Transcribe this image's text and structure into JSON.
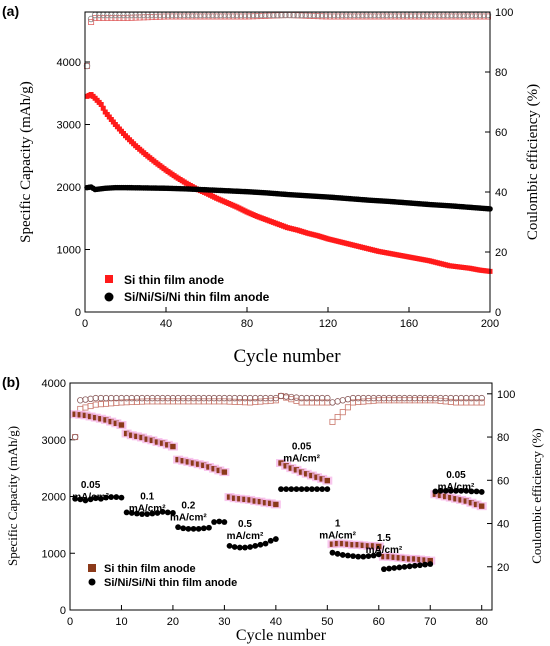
{
  "chart_data": [
    {
      "type": "scatter",
      "panel_label": "(a)",
      "xlabel": "Cycle number",
      "ylabel": "Specific Capacity (mAh/g)",
      "ylabel_right": "Coulombic efficiency (%)",
      "xlim": [
        0,
        200
      ],
      "ylim": [
        0,
        4800
      ],
      "ylim_right": [
        0,
        100
      ],
      "x_ticks": [
        "0",
        "40",
        "80",
        "120",
        "160",
        "200"
      ],
      "y_ticks": [
        "0",
        "1000",
        "2000",
        "3000",
        "4000"
      ],
      "y_ticks_right": [
        "0",
        "20",
        "40",
        "60",
        "80",
        "100"
      ],
      "legend_position": "bottom-left",
      "grid": false,
      "colors": {
        "si": "#ff1a1a",
        "multi": "#000000",
        "si_ce": "#e06666",
        "multi_ce": "#888888"
      },
      "series": [
        {
          "name": "Si thin film anode",
          "axis": "left",
          "x": [
            1,
            3,
            5,
            8,
            10,
            15,
            20,
            25,
            30,
            35,
            40,
            45,
            50,
            55,
            60,
            65,
            70,
            75,
            80,
            85,
            90,
            95,
            100,
            105,
            110,
            115,
            120,
            125,
            130,
            135,
            140,
            145,
            150,
            155,
            160,
            165,
            170,
            175,
            180,
            185,
            190,
            195,
            200
          ],
          "y": [
            3450,
            3480,
            3420,
            3320,
            3200,
            3000,
            2820,
            2660,
            2520,
            2390,
            2270,
            2160,
            2060,
            1970,
            1900,
            1820,
            1750,
            1680,
            1600,
            1530,
            1470,
            1410,
            1350,
            1310,
            1260,
            1220,
            1170,
            1130,
            1090,
            1050,
            1010,
            970,
            940,
            910,
            880,
            850,
            820,
            780,
            740,
            720,
            700,
            670,
            650
          ]
        },
        {
          "name": "Si/Ni/Si/Ni thin film anode",
          "axis": "left",
          "x": [
            1,
            3,
            5,
            10,
            15,
            20,
            30,
            40,
            50,
            60,
            70,
            80,
            90,
            100,
            110,
            120,
            130,
            140,
            150,
            160,
            170,
            180,
            190,
            200
          ],
          "y": [
            1990,
            2000,
            1960,
            1980,
            1990,
            1990,
            1985,
            1980,
            1970,
            1955,
            1940,
            1925,
            1905,
            1880,
            1860,
            1840,
            1815,
            1790,
            1770,
            1745,
            1720,
            1700,
            1675,
            1650
          ]
        },
        {
          "name": "Si thin film CE",
          "axis": "right",
          "marker": "open-square",
          "x": [
            1,
            2,
            5,
            10,
            20,
            40,
            60,
            80,
            100,
            120,
            140,
            160,
            180,
            200
          ],
          "y": [
            82,
            96,
            98,
            98,
            98,
            98.5,
            98.5,
            98.5,
            99,
            98.5,
            98.5,
            98.5,
            98.5,
            98.5
          ]
        },
        {
          "name": "Si/Ni/Si/Ni thin film CE",
          "axis": "right",
          "marker": "open-circle",
          "x": [
            1,
            2,
            5,
            10,
            20,
            40,
            60,
            80,
            100,
            120,
            140,
            160,
            180,
            200
          ],
          "y": [
            82,
            97,
            99,
            99,
            99,
            99,
            99,
            99,
            99,
            99,
            99,
            99,
            99,
            99
          ]
        }
      ]
    },
    {
      "type": "scatter",
      "panel_label": "(b)",
      "xlabel": "Cycle number",
      "ylabel": "Specific Capacity (mAh/g)",
      "ylabel_right": "Coulombic efficiency (%)",
      "xlim": [
        0,
        82
      ],
      "ylim": [
        0,
        4000
      ],
      "ylim_right": [
        0,
        105
      ],
      "x_ticks": [
        "0",
        "10",
        "20",
        "30",
        "40",
        "50",
        "60",
        "70",
        "80"
      ],
      "y_ticks": [
        "0",
        "1000",
        "2000",
        "3000",
        "4000"
      ],
      "y_ticks_right": [
        "20",
        "40",
        "60",
        "80",
        "100"
      ],
      "legend_position": "bottom-left",
      "grid": false,
      "colors": {
        "si": "#8b3a1a",
        "si_glow": "#f6b8e8",
        "multi": "#000000",
        "si_ce": "#c9776b",
        "multi_ce": "#8a5a5a"
      },
      "annotations": [
        {
          "lines": [
            "0.05",
            "mA/cm²"
          ],
          "x": 4,
          "y": 2150
        },
        {
          "lines": [
            "0.1",
            "mA/cm²"
          ],
          "x": 15,
          "y": 1950
        },
        {
          "lines": [
            "0.2",
            "mA/cm²"
          ],
          "x": 23,
          "y": 1790
        },
        {
          "lines": [
            "0.5",
            "mA/cm²"
          ],
          "x": 34,
          "y": 1460
        },
        {
          "lines": [
            "0.05",
            "mA/cm²"
          ],
          "x": 45,
          "y": 2830
        },
        {
          "lines": [
            "1",
            "mA/cm²"
          ],
          "x": 52,
          "y": 1470
        },
        {
          "lines": [
            "1.5",
            "mA/cm²"
          ],
          "x": 61,
          "y": 1220
        },
        {
          "lines": [
            "0.05",
            "mA/cm²"
          ],
          "x": 75,
          "y": 2330
        }
      ],
      "series": [
        {
          "name": "Si thin film anode",
          "axis": "left",
          "x": [
            1,
            2,
            3,
            4,
            5,
            6,
            7,
            8,
            9,
            10,
            11,
            12,
            13,
            14,
            15,
            16,
            17,
            18,
            19,
            20,
            21,
            22,
            23,
            24,
            25,
            26,
            27,
            28,
            29,
            30,
            31,
            32,
            33,
            34,
            35,
            36,
            37,
            38,
            39,
            40,
            41,
            42,
            43,
            44,
            45,
            46,
            47,
            48,
            49,
            50,
            51,
            52,
            53,
            54,
            55,
            56,
            57,
            58,
            59,
            60,
            61,
            62,
            63,
            64,
            65,
            66,
            67,
            68,
            69,
            70,
            71,
            72,
            73,
            74,
            75,
            76,
            77,
            78,
            79,
            80
          ],
          "y": [
            3450,
            3440,
            3430,
            3410,
            3390,
            3370,
            3350,
            3320,
            3290,
            3260,
            3110,
            3080,
            3060,
            3040,
            3010,
            2990,
            2960,
            2940,
            2910,
            2880,
            2650,
            2630,
            2610,
            2590,
            2570,
            2550,
            2520,
            2490,
            2460,
            2430,
            1990,
            1970,
            1960,
            1950,
            1940,
            1920,
            1910,
            1890,
            1880,
            1860,
            2590,
            2540,
            2500,
            2470,
            2430,
            2400,
            2370,
            2340,
            2310,
            2280,
            1160,
            1170,
            1170,
            1160,
            1150,
            1150,
            1140,
            1130,
            1130,
            1120,
            940,
            940,
            930,
            920,
            910,
            900,
            900,
            890,
            880,
            870,
            2040,
            2020,
            2000,
            1980,
            1960,
            1940,
            1920,
            1890,
            1860,
            1830
          ]
        },
        {
          "name": "Si/Ni/Si/Ni thin film anode",
          "axis": "left",
          "x": [
            1,
            2,
            3,
            4,
            5,
            6,
            7,
            8,
            9,
            10,
            11,
            12,
            13,
            14,
            15,
            16,
            17,
            18,
            19,
            20,
            21,
            22,
            23,
            24,
            25,
            26,
            27,
            28,
            29,
            30,
            31,
            32,
            33,
            34,
            35,
            36,
            37,
            38,
            39,
            40,
            41,
            42,
            43,
            44,
            45,
            46,
            47,
            48,
            49,
            50,
            51,
            52,
            53,
            54,
            55,
            56,
            57,
            58,
            59,
            60,
            61,
            62,
            63,
            64,
            65,
            66,
            67,
            68,
            69,
            70,
            71,
            72,
            73,
            74,
            75,
            76,
            77,
            78,
            79,
            80
          ],
          "y": [
            1960,
            1950,
            1930,
            1950,
            1970,
            1960,
            1980,
            1990,
            1990,
            1980,
            1720,
            1710,
            1700,
            1690,
            1690,
            1700,
            1710,
            1730,
            1720,
            1710,
            1460,
            1440,
            1430,
            1430,
            1430,
            1440,
            1450,
            1550,
            1560,
            1550,
            1130,
            1110,
            1100,
            1100,
            1110,
            1130,
            1150,
            1170,
            1220,
            1250,
            2130,
            2130,
            2130,
            2130,
            2130,
            2130,
            2130,
            2130,
            2130,
            2130,
            1010,
            990,
            970,
            960,
            950,
            940,
            940,
            950,
            960,
            980,
            720,
            730,
            740,
            750,
            760,
            770,
            780,
            790,
            800,
            810,
            2090,
            2100,
            2100,
            2100,
            2100,
            2100,
            2100,
            2090,
            2090,
            2080
          ]
        },
        {
          "name": "Si thin film CE",
          "axis": "right",
          "marker": "open-square",
          "x": [
            1,
            2,
            5,
            10,
            15,
            20,
            25,
            30,
            35,
            40,
            41,
            45,
            50,
            51,
            55,
            60,
            61,
            65,
            70,
            71,
            75,
            80
          ],
          "y": [
            80,
            93,
            95,
            96,
            96.5,
            96.5,
            96.5,
            96.5,
            96,
            97,
            99,
            96,
            96,
            87,
            96,
            97,
            97,
            97,
            97,
            97,
            96,
            96
          ]
        },
        {
          "name": "Si/Ni/Si/Ni thin film CE",
          "axis": "right",
          "marker": "open-circle",
          "x": [
            1,
            2,
            5,
            10,
            15,
            20,
            25,
            30,
            35,
            40,
            41,
            45,
            50,
            51,
            55,
            60,
            61,
            65,
            70,
            71,
            75,
            80
          ],
          "y": [
            80,
            97,
            98,
            98,
            98,
            98,
            98,
            98,
            98,
            98,
            99,
            98,
            98,
            96,
            98,
            98,
            98,
            98,
            98,
            98,
            98,
            98
          ]
        }
      ]
    }
  ]
}
